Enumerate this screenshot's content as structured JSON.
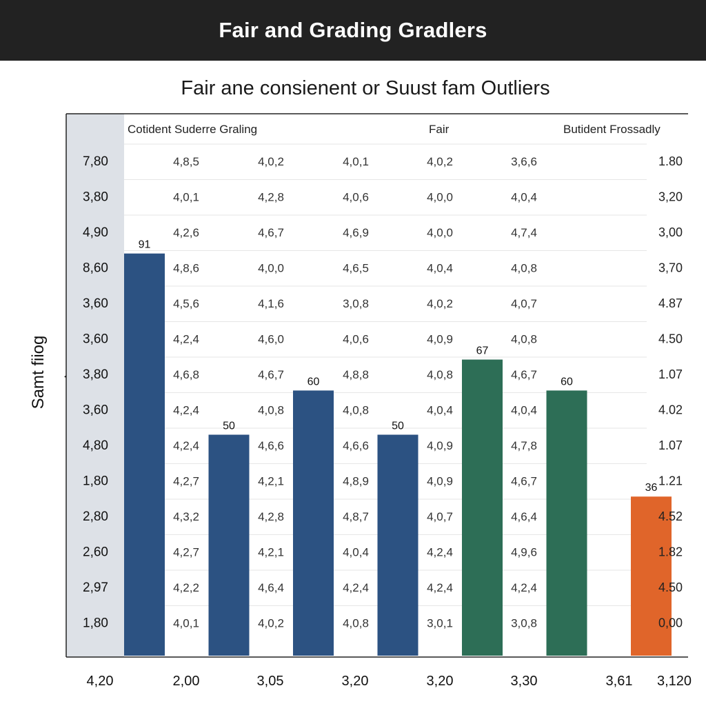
{
  "header": {
    "title": "Fair and Grading Gradlers"
  },
  "chart_data": {
    "type": "bar",
    "title": "Fair ane consienent or Suust fam Outliers",
    "ylabel": "Samt fiiog",
    "ylim": [
      0,
      100
    ],
    "group_labels": [
      "Cotident Suderre Graling",
      "Fair",
      "Butident Frossadly"
    ],
    "bars": [
      {
        "label": "91",
        "value": 91,
        "color": "#2c5282"
      },
      {
        "label": "50",
        "value": 50,
        "color": "#2c5282"
      },
      {
        "label": "60",
        "value": 60,
        "color": "#2c5282"
      },
      {
        "label": "50",
        "value": 50,
        "color": "#2c5282"
      },
      {
        "label": "67",
        "value": 67,
        "color": "#2d6e56"
      },
      {
        "label": "60",
        "value": 60,
        "color": "#2d6e56"
      },
      {
        "label": "36",
        "value": 36,
        "color": "#e0652a"
      }
    ],
    "row_labels": [
      "7,80",
      "3,80",
      "4,90",
      "8,60",
      "3,60",
      "3,60",
      "3,80",
      "3,60",
      "4,80",
      "1,80",
      "2,80",
      "2,60",
      "2,97",
      "1,80"
    ],
    "right_labels": [
      "1.80",
      "3,20",
      "3,00",
      "3,70",
      "4.87",
      "4.50",
      "1.07",
      "4.02",
      "1.07",
      "1.21",
      "4.52",
      "1.82",
      "4.50",
      "0,00"
    ],
    "table_columns": [
      [
        "4,8,5",
        "4,0,1",
        "4,2,6",
        "4,8,6",
        "4,5,6",
        "4,2,4",
        "4,6,8",
        "4,2,4",
        "4,2,4",
        "4,2,7",
        "4,3,2",
        "4,2,7",
        "4,2,2",
        "4,0,1"
      ],
      [
        "4,0,2",
        "4,2,8",
        "4,6,7",
        "4,0,0",
        "4,1,6",
        "4,6,0",
        "4,6,7",
        "4,0,8",
        "4,6,6",
        "4,2,1",
        "4,2,8",
        "4,2,1",
        "4,6,4",
        "4,0,2"
      ],
      [
        "4,0,1",
        "4,0,6",
        "4,6,9",
        "4,6,5",
        "3,0,8",
        "4,0,6",
        "4,8,8",
        "4,0,8",
        "4,6,6",
        "4,8,9",
        "4,8,7",
        "4,0,4",
        "4,2,4",
        "4,0,8"
      ],
      [
        "4,0,2",
        "4,0,0",
        "4,0,0",
        "4,0,4",
        "4,0,2",
        "4,0,9",
        "4,0,8",
        "4,0,4",
        "4,0,9",
        "4,0,9",
        "4,0,7",
        "4,2,4",
        "4,2,4",
        "3,0,1"
      ],
      [
        "3,6,6",
        "4,0,4",
        "4,7,4",
        "4,0,8",
        "4,0,7",
        "4,0,8",
        "4,6,7",
        "4,0,4",
        "4,7,8",
        "4,6,7",
        "4,6,4",
        "4,9,6",
        "4,2,4",
        "3,0,8"
      ]
    ],
    "bottom_labels": [
      "4,20",
      "2,00",
      "3,05",
      "3,20",
      "3,20",
      "3,30",
      "3,61",
      "3,120"
    ],
    "grid": true
  }
}
